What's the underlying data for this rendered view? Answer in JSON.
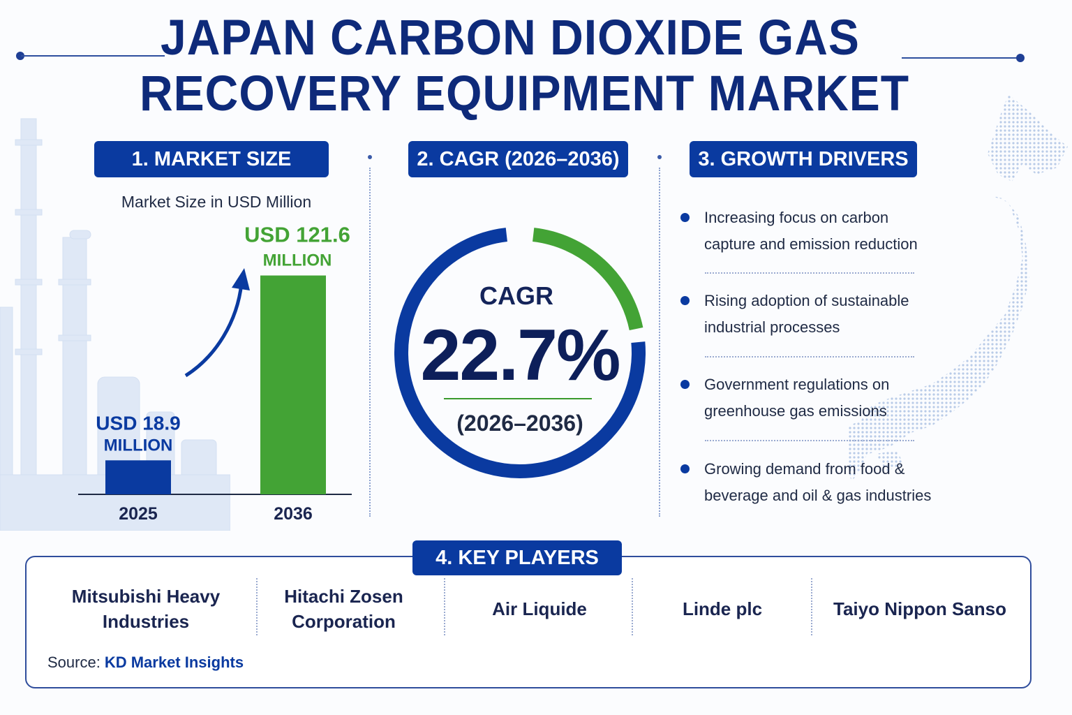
{
  "title": {
    "line1": "JAPAN CARBON DIOXIDE GAS",
    "line2": "RECOVERY EQUIPMENT MARKET"
  },
  "sections": {
    "market_size": "1. MARKET SIZE",
    "cagr": "2. CAGR (2026–2036)",
    "drivers": "3. GROWTH DRIVERS",
    "players": "4. KEY PLAYERS"
  },
  "chart_data": {
    "type": "bar",
    "title": "Market Size in USD Million",
    "categories": [
      "2025",
      "2036"
    ],
    "values": [
      18.9,
      121.6
    ],
    "value_labels": [
      [
        "USD 18.9",
        "MILLION"
      ],
      [
        "USD 121.6",
        "MILLION"
      ]
    ],
    "colors": [
      "#0a3aa0",
      "#43a335"
    ],
    "ylim": [
      0,
      135
    ]
  },
  "cagr": {
    "label": "CAGR",
    "value": "22.7%",
    "period": "(2026–2036)",
    "ring_fraction_green": 0.227,
    "colors": {
      "primary": "#0a3aa0",
      "accent": "#43a335"
    }
  },
  "drivers": [
    "Increasing focus on carbon capture and emission reduction",
    "Rising adoption of sustainable industrial processes",
    "Government regulations on greenhouse gas emissions",
    "Growing demand from food & beverage and oil & gas industries"
  ],
  "players": [
    "Mitsubishi Heavy Industries",
    "Hitachi Zosen Corporation",
    "Air Liquide",
    "Linde plc",
    "Taiyo Nippon Sanso"
  ],
  "source": {
    "label": "Source:",
    "name": "KD Market Insights"
  },
  "colors": {
    "brand_blue": "#0a3aa0",
    "brand_green": "#43a335",
    "title_navy": "#0e2a7a"
  }
}
